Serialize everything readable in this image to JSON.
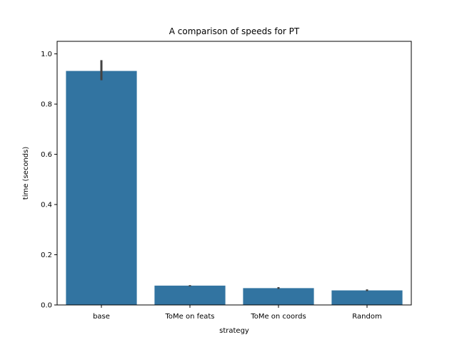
{
  "chart_data": {
    "type": "bar",
    "title": "A comparison of speeds for PT",
    "xlabel": "strategy",
    "ylabel": "time (seconds)",
    "categories": [
      "base",
      "ToMe on feats",
      "ToMe on coords",
      "Random"
    ],
    "values": [
      0.932,
      0.077,
      0.067,
      0.058
    ],
    "error_bars": [
      [
        0.895,
        0.975
      ],
      [
        0.074,
        0.079
      ],
      [
        0.064,
        0.071
      ],
      [
        0.055,
        0.062
      ]
    ],
    "ylim": [
      0,
      1.05
    ],
    "yticks": [
      0.0,
      0.2,
      0.4,
      0.6,
      0.8,
      1.0
    ],
    "ytick_labels": [
      "0.0",
      "0.2",
      "0.4",
      "0.6",
      "0.8",
      "1.0"
    ],
    "bar_color": "#3274a1",
    "errorbar_color": "#424242",
    "grid": false,
    "legend": "none"
  }
}
